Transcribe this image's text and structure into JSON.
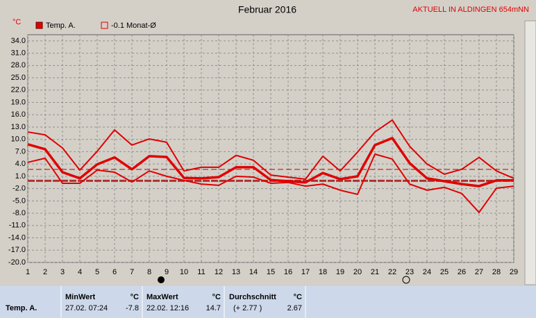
{
  "chart_data": {
    "type": "line",
    "title": "Februar 2016",
    "station": "AKTUELL IN ALDINGEN 654mNN",
    "y_unit": "°C",
    "categories": [
      "1",
      "2",
      "3",
      "4",
      "5",
      "6",
      "7",
      "8",
      "9",
      "10",
      "11",
      "12",
      "13",
      "14",
      "15",
      "16",
      "17",
      "18",
      "19",
      "20",
      "21",
      "22",
      "23",
      "24",
      "25",
      "26",
      "27",
      "28",
      "29"
    ],
    "series": [
      {
        "name": "Temp. A.",
        "color": "#e00000",
        "values": [
          8.8,
          7.6,
          2.0,
          0.5,
          3.9,
          5.6,
          2.7,
          5.9,
          5.7,
          0.6,
          0.5,
          0.8,
          3.2,
          3.2,
          0.1,
          -0.2,
          -0.5,
          1.8,
          0.3,
          1.0,
          8.6,
          10.3,
          4.2,
          0.5,
          -0.2,
          -0.9,
          -1.4,
          0.0,
          0.0
        ],
        "max": [
          11.8,
          11.1,
          7.9,
          2.5,
          7.1,
          12.3,
          8.6,
          10.1,
          9.3,
          2.3,
          3.2,
          3.2,
          6.1,
          4.9,
          1.3,
          0.8,
          0.3,
          5.9,
          2.3,
          6.9,
          11.8,
          14.7,
          8.3,
          4.0,
          1.5,
          2.7,
          5.6,
          2.3,
          0.5
        ],
        "min": [
          4.4,
          5.4,
          -0.7,
          -0.7,
          2.5,
          2.0,
          -0.4,
          2.3,
          1.0,
          0.0,
          -0.9,
          -1.2,
          1.0,
          0.8,
          -0.7,
          -0.5,
          -1.4,
          -0.9,
          -2.4,
          -3.4,
          6.4,
          5.2,
          -0.9,
          -2.4,
          -1.7,
          -3.2,
          -7.8,
          -1.9,
          -1.4
        ]
      }
    ],
    "reference": {
      "name": "-0.1 Monat-Ø",
      "value": -0.1,
      "color": "#b03030"
    },
    "ylim": [
      -20,
      35.5
    ],
    "yticks": [
      {
        "value": 34,
        "label": "34.0"
      },
      {
        "value": 31,
        "label": "31.0"
      },
      {
        "value": 28,
        "label": "28.0"
      },
      {
        "value": 25,
        "label": "25.0"
      },
      {
        "value": 22,
        "label": "22.0"
      },
      {
        "value": 19,
        "label": "19.0"
      },
      {
        "value": 16,
        "label": "16.0"
      },
      {
        "value": 13,
        "label": "13.0"
      },
      {
        "value": 10,
        "label": "10.0"
      },
      {
        "value": 7,
        "label": "7.0"
      },
      {
        "value": 4,
        "label": "4.0"
      },
      {
        "value": 1,
        "label": "1.0"
      },
      {
        "value": -2,
        "label": "-2.0"
      },
      {
        "value": -5,
        "label": "-5.0"
      },
      {
        "value": -8,
        "label": "-8.0"
      },
      {
        "value": -11,
        "label": "-11.0"
      },
      {
        "value": -14,
        "label": "-14.0"
      },
      {
        "value": -17,
        "label": "-17.0"
      },
      {
        "value": -20,
        "label": "-20.0"
      }
    ],
    "grid": true,
    "stats": {
      "row": "Temp. A.",
      "min_header": "MinWert",
      "min_time": "27.02.  07:24",
      "min": -7.8,
      "max_header": "MaxWert",
      "max_time": "22.02.  12:16",
      "max": 14.7,
      "avg_header": "Durchschnitt",
      "avg_delta": "(+ 2.77 )",
      "average": 2.67,
      "unit": "°C"
    }
  }
}
